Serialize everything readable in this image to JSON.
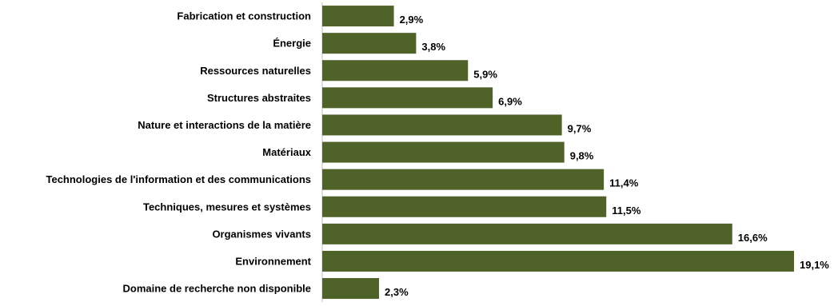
{
  "chart_data": {
    "type": "bar",
    "orientation": "horizontal",
    "title": "",
    "xlabel": "",
    "ylabel": "",
    "bar_color": "#4f6228",
    "grid": false,
    "legend": "none",
    "categories": [
      "Fabrication et construction",
      "Énergie",
      "Ressources naturelles",
      "Structures abstraites",
      "Nature et interactions de la matière",
      "Matériaux",
      "Technologies de l'information et des communications",
      "Techniques, mesures et systèmes",
      "Organismes vivants",
      "Environnement",
      "Domaine de recherche non disponible"
    ],
    "values": [
      2.9,
      3.8,
      5.9,
      6.9,
      9.7,
      9.8,
      11.4,
      11.5,
      16.6,
      19.1,
      2.3
    ],
    "value_labels": [
      "2,9%",
      "3,8%",
      "5,9%",
      "6,9%",
      "9,7%",
      "9,8%",
      "11,4%",
      "11,5%",
      "16,6%",
      "19,1%",
      "2,3%"
    ],
    "xlim": [
      0,
      19.1
    ]
  }
}
